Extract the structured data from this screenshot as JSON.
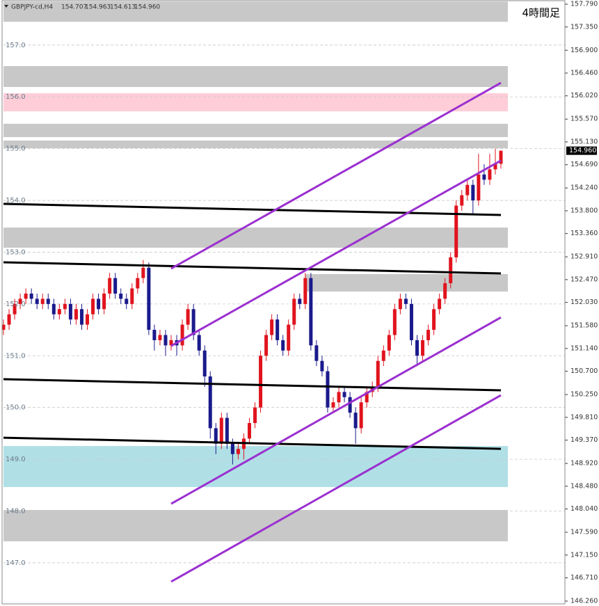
{
  "chart_data": {
    "type": "candlestick",
    "symbol": "GBPJPY-cd,H4",
    "header_values": [
      "154.707",
      "154.963",
      "154.613",
      "154.960"
    ],
    "title": "4時間足",
    "up_color": "#e0141e",
    "down_color": "#1a1a8c",
    "ylim": [
      146.206,
      157.871
    ],
    "yticks": [
      {
        "value": 157.79,
        "label": "157.790"
      },
      {
        "value": 157.35,
        "label": "157.350"
      },
      {
        "value": 156.9,
        "label": "156.900"
      },
      {
        "value": 156.46,
        "label": "156.460"
      },
      {
        "value": 156.02,
        "label": "156.020"
      },
      {
        "value": 155.57,
        "label": "155.570"
      },
      {
        "value": 155.13,
        "label": "155.130"
      },
      {
        "value": 154.69,
        "label": "154.690"
      },
      {
        "value": 154.24,
        "label": "154.240"
      },
      {
        "value": 153.8,
        "label": "153.800"
      },
      {
        "value": 153.36,
        "label": "153.360"
      },
      {
        "value": 152.91,
        "label": "152.910"
      },
      {
        "value": 152.47,
        "label": "152.470"
      },
      {
        "value": 152.03,
        "label": "152.030"
      },
      {
        "value": 151.58,
        "label": "151.580"
      },
      {
        "value": 151.14,
        "label": "151.140"
      },
      {
        "value": 150.7,
        "label": "150.700"
      },
      {
        "value": 150.25,
        "label": "150.250"
      },
      {
        "value": 149.81,
        "label": "149.810"
      },
      {
        "value": 149.37,
        "label": "149.370"
      },
      {
        "value": 148.92,
        "label": "148.920"
      },
      {
        "value": 148.48,
        "label": "148.480"
      },
      {
        "value": 148.04,
        "label": "148.040"
      },
      {
        "value": 147.59,
        "label": "147.590"
      },
      {
        "value": 147.15,
        "label": "147.150"
      },
      {
        "value": 146.71,
        "label": "146.710"
      },
      {
        "value": 146.26,
        "label": "146.260"
      }
    ],
    "grid_ticks": [
      {
        "value": 157,
        "label": "157.0"
      },
      {
        "value": 156,
        "label": "156.0"
      },
      {
        "value": 155,
        "label": "155.0"
      },
      {
        "value": 154,
        "label": "154.0"
      },
      {
        "value": 153,
        "label": "153.0"
      },
      {
        "value": 152,
        "label": "152.0"
      },
      {
        "value": 151,
        "label": "151.0"
      },
      {
        "value": 150,
        "label": "150.0"
      },
      {
        "value": 149,
        "label": "149.0"
      },
      {
        "value": 148,
        "label": "148.0"
      },
      {
        "value": 147,
        "label": "147.0"
      }
    ],
    "last_price": {
      "value": 154.96,
      "label": "154.960"
    },
    "zones": [
      {
        "color": "#c8c8c8",
        "y": [
          157.45,
          157.84
        ]
      },
      {
        "color": "#c8c8c8",
        "y": [
          156.191,
          156.594
        ]
      },
      {
        "color": "#ffcdd8",
        "y": [
          155.72,
          156.07
        ]
      },
      {
        "color": "#c8c8c8",
        "y": [
          155.223,
          155.48
        ]
      },
      {
        "color": "#c8c8c8",
        "y": [
          155.008,
          155.156
        ]
      },
      {
        "color": "#c8c8c8",
        "y": [
          153.086,
          153.476
        ]
      },
      {
        "color": "#c8c8c8",
        "y": [
          152.24,
          152.576
        ],
        "x_start": 54
      },
      {
        "color": "#b0e0e6",
        "y": [
          148.463,
          149.256
        ]
      },
      {
        "color": "#c8c8c8",
        "y": [
          147.415,
          148.02
        ]
      }
    ],
    "lines": [
      {
        "color": "#000000",
        "x": [
          0,
          89
        ],
        "y": [
          153.933,
          153.718
        ]
      },
      {
        "color": "#000000",
        "x": [
          0,
          89
        ],
        "y": [
          152.804,
          152.589
        ]
      },
      {
        "color": "#000000",
        "x": [
          0,
          89
        ],
        "y": [
          150.546,
          150.331
        ]
      },
      {
        "color": "#000000",
        "x": [
          0,
          89
        ],
        "y": [
          149.417,
          149.202
        ]
      },
      {
        "color": "#9b30d0",
        "x": [
          30,
          89
        ],
        "y": [
          152.683,
          156.271
        ]
      },
      {
        "color": "#9b30d0",
        "x": [
          30,
          89
        ],
        "y": [
          151.19,
          154.77
        ]
      },
      {
        "color": "#9b30d0",
        "x": [
          30,
          89
        ],
        "y": [
          148.14,
          151.74
        ]
      },
      {
        "color": "#9b30d0",
        "x": [
          30,
          89
        ],
        "y": [
          146.636,
          150.237
        ]
      }
    ],
    "candles": [
      [
        151.5,
        151.7,
        151.4,
        151.6
      ],
      [
        151.6,
        151.9,
        151.5,
        151.8
      ],
      [
        151.8,
        152.1,
        151.7,
        152.0
      ],
      [
        152.0,
        152.2,
        151.9,
        152.1
      ],
      [
        152.1,
        152.3,
        152.0,
        152.2
      ],
      [
        152.2,
        152.3,
        152.0,
        152.1
      ],
      [
        152.1,
        152.2,
        151.9,
        152.0
      ],
      [
        152.0,
        152.2,
        151.9,
        152.1
      ],
      [
        152.1,
        152.2,
        151.9,
        152.0
      ],
      [
        152.0,
        152.1,
        151.7,
        151.8
      ],
      [
        151.8,
        152.0,
        151.7,
        151.9
      ],
      [
        151.9,
        152.1,
        151.8,
        152.0
      ],
      [
        152.0,
        152.1,
        151.6,
        151.7
      ],
      [
        151.7,
        152.0,
        151.6,
        151.9
      ],
      [
        151.9,
        152.0,
        151.5,
        151.6
      ],
      [
        151.6,
        151.9,
        151.5,
        151.8
      ],
      [
        151.8,
        152.2,
        151.7,
        152.1
      ],
      [
        152.1,
        152.2,
        151.8,
        151.9
      ],
      [
        151.9,
        152.3,
        151.8,
        152.2
      ],
      [
        152.2,
        152.6,
        152.1,
        152.5
      ],
      [
        152.5,
        152.6,
        152.1,
        152.2
      ],
      [
        152.2,
        152.3,
        152.0,
        152.1
      ],
      [
        152.1,
        152.2,
        151.9,
        152.0
      ],
      [
        152.0,
        152.4,
        151.9,
        152.3
      ],
      [
        152.3,
        152.6,
        152.2,
        152.5
      ],
      [
        152.5,
        152.85,
        152.4,
        152.7
      ],
      [
        152.7,
        152.8,
        151.4,
        151.5
      ],
      [
        151.5,
        151.6,
        151.1,
        151.3
      ],
      [
        151.3,
        151.5,
        151.2,
        151.4
      ],
      [
        151.4,
        151.5,
        151.0,
        151.2
      ],
      [
        151.2,
        151.4,
        151.1,
        151.3
      ],
      [
        151.3,
        151.4,
        151.0,
        151.2
      ],
      [
        151.2,
        151.7,
        151.1,
        151.6
      ],
      [
        151.6,
        152.0,
        151.5,
        151.9
      ],
      [
        151.9,
        152.0,
        151.3,
        151.4
      ],
      [
        151.4,
        151.5,
        151.0,
        151.1
      ],
      [
        151.1,
        151.2,
        150.4,
        150.6
      ],
      [
        150.6,
        150.7,
        149.4,
        149.6
      ],
      [
        149.6,
        149.7,
        149.1,
        149.3
      ],
      [
        149.3,
        149.9,
        149.2,
        149.8
      ],
      [
        149.8,
        149.9,
        149.2,
        149.3
      ],
      [
        149.3,
        149.4,
        148.9,
        149.1
      ],
      [
        149.1,
        149.3,
        149.0,
        149.2
      ],
      [
        149.2,
        149.5,
        149.0,
        149.4
      ],
      [
        149.4,
        149.8,
        149.3,
        149.7
      ],
      [
        149.7,
        150.1,
        149.6,
        150.0
      ],
      [
        150.0,
        151.1,
        149.9,
        151.0
      ],
      [
        151.0,
        151.5,
        150.9,
        151.4
      ],
      [
        151.4,
        151.8,
        151.3,
        151.7
      ],
      [
        151.7,
        151.8,
        151.2,
        151.3
      ],
      [
        151.3,
        151.4,
        151.0,
        151.1
      ],
      [
        151.1,
        151.7,
        151.0,
        151.6
      ],
      [
        151.6,
        152.2,
        151.5,
        152.1
      ],
      [
        152.1,
        152.2,
        151.9,
        152.0
      ],
      [
        152.0,
        152.6,
        151.9,
        152.5
      ],
      [
        152.5,
        152.6,
        151.1,
        151.2
      ],
      [
        151.2,
        151.3,
        150.8,
        150.9
      ],
      [
        150.9,
        151.0,
        150.6,
        150.7
      ],
      [
        150.7,
        150.8,
        149.9,
        150.0
      ],
      [
        150.0,
        150.2,
        149.9,
        150.1
      ],
      [
        150.1,
        150.4,
        150.0,
        150.3
      ],
      [
        150.3,
        150.4,
        150.1,
        150.2
      ],
      [
        150.2,
        150.3,
        149.8,
        149.9
      ],
      [
        149.9,
        150.0,
        149.3,
        149.6
      ],
      [
        149.6,
        150.2,
        149.5,
        150.1
      ],
      [
        150.1,
        150.4,
        150.0,
        150.3
      ],
      [
        150.3,
        150.5,
        150.2,
        150.4
      ],
      [
        150.4,
        151.0,
        150.3,
        150.9
      ],
      [
        150.9,
        151.2,
        150.8,
        151.1
      ],
      [
        151.1,
        151.5,
        151.0,
        151.4
      ],
      [
        151.4,
        152.0,
        151.3,
        151.9
      ],
      [
        151.9,
        152.2,
        151.8,
        152.1
      ],
      [
        152.1,
        152.2,
        151.9,
        152.0
      ],
      [
        152.0,
        152.1,
        151.2,
        151.3
      ],
      [
        151.3,
        151.4,
        150.8,
        151.0
      ],
      [
        151.0,
        151.4,
        150.9,
        151.3
      ],
      [
        151.3,
        151.6,
        151.2,
        151.5
      ],
      [
        151.5,
        152.0,
        151.4,
        151.9
      ],
      [
        151.9,
        152.2,
        151.8,
        152.1
      ],
      [
        152.1,
        152.5,
        152.0,
        152.4
      ],
      [
        152.4,
        153.0,
        152.3,
        152.9
      ],
      [
        152.9,
        154.0,
        152.8,
        153.9
      ],
      [
        153.9,
        154.2,
        153.8,
        154.1
      ],
      [
        154.1,
        154.4,
        154.0,
        154.3
      ],
      [
        154.3,
        154.4,
        153.75,
        154.0
      ],
      [
        154.0,
        154.9,
        153.9,
        154.5
      ],
      [
        154.5,
        154.7,
        154.3,
        154.4
      ],
      [
        154.4,
        154.9,
        154.3,
        154.6
      ],
      [
        154.6,
        155.0,
        154.5,
        154.7
      ],
      [
        154.707,
        154.963,
        154.613,
        154.96
      ]
    ]
  }
}
